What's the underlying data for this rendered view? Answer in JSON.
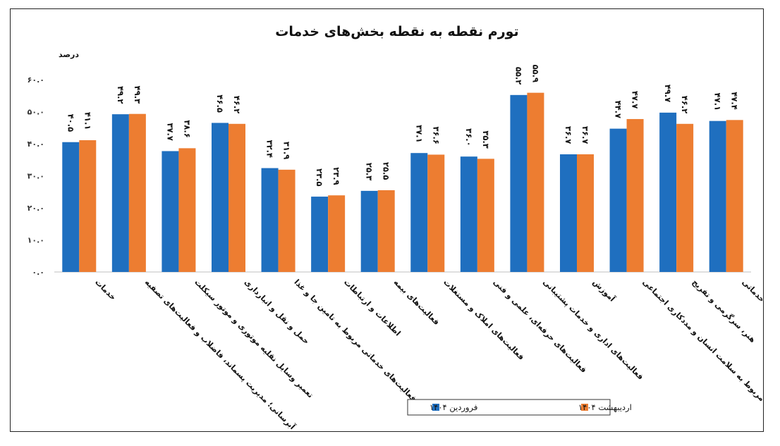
{
  "chart_data": {
    "type": "bar",
    "title": "تورم نقطه به نقطه بخش‌های خدمات",
    "ylabel": "درصد",
    "ylim": [
      0,
      60
    ],
    "yticks": [
      0,
      10,
      20,
      30,
      40,
      50,
      60
    ],
    "ytick_labels": [
      "۰.۰",
      "۱۰.۰",
      "۲۰.۰",
      "۳۰.۰",
      "۴۰.۰",
      "۵۰.۰",
      "۶۰.۰"
    ],
    "grid": false,
    "legend_position": "bottom-right",
    "categories": [
      "خدمات",
      "آبرسانی؛ مدیریت پسماند، فاضلاب و فعالیت‌های تصفیه",
      "تعمیر وسایل نقلیه موتوری و موتور سیکلت",
      "حمل و نقل و انبارداری",
      "فعالیت‌های خدماتی مربوط به تامین جا و غذا",
      "اطلاعات و ارتباطات",
      "فعالیت‌های بیمه",
      "فعالیت‌های املاک و مستغلات",
      "فعالیت‌های حرفه‌ای، علمی و فنی",
      "فعالیت‌های اداری و خدمات پشتیبانی",
      "آموزش",
      "فعالیت‌های مربوط به سلامت انسان و مددکاری اجتماعی",
      "هنر، سرگرمی و تفریح",
      "سایر فعالیت‌های خدماتی"
    ],
    "series": [
      {
        "name": "فروردین ۱۴۰۴",
        "color": "#1f6fbf",
        "values": [
          40.5,
          49.2,
          37.7,
          46.5,
          32.4,
          23.5,
          25.3,
          37.1,
          36.0,
          55.2,
          36.7,
          44.7,
          49.7,
          47.1
        ],
        "labels": [
          "۴۰.۵",
          "۴۹.۲",
          "۳۷.۷",
          "۴۶.۵",
          "۳۲.۴",
          "۲۳.۵",
          "۲۵.۳",
          "۳۷.۱",
          "۳۶.۰",
          "۵۵.۲",
          "۳۶.۷",
          "۴۴.۷",
          "۴۹.۷",
          "۴۷.۱"
        ]
      },
      {
        "name": "اردیبهشت ۱۴۰۴",
        "color": "#ed7d31",
        "values": [
          41.1,
          49.3,
          38.6,
          46.2,
          31.9,
          23.9,
          25.5,
          36.6,
          35.3,
          55.9,
          36.7,
          47.7,
          46.2,
          47.4
        ],
        "labels": [
          "۴۱.۱",
          "۴۹.۳",
          "۳۸.۶",
          "۴۶.۲",
          "۳۱.۹",
          "۲۳.۹",
          "۲۵.۵",
          "۳۶.۶",
          "۳۵.۳",
          "۵۵.۹",
          "۳۶.۷",
          "۴۷.۷",
          "۴۶.۲",
          "۴۷.۴"
        ]
      }
    ]
  }
}
